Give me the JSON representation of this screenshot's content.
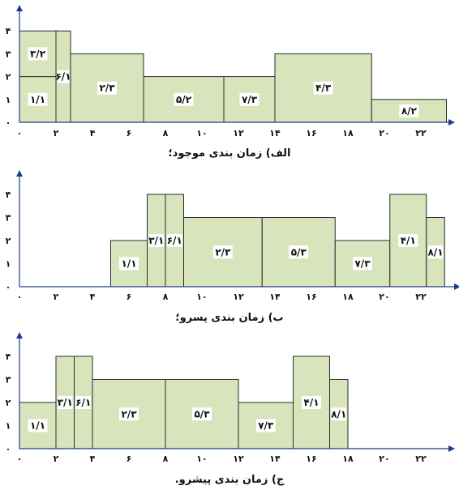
{
  "chart_data": [
    {
      "type": "bar",
      "title": "الف) زمان بندی موجود؛",
      "x_ticks": [
        "۰",
        "۲",
        "۴",
        "۶",
        "۸",
        "۱۰",
        "۱۲",
        "۱۴",
        "۱۶",
        "۱۸",
        "۲۰",
        "۲۲"
      ],
      "y_ticks": [
        "۰",
        "۱",
        "۲",
        "۳",
        "۴"
      ],
      "xlim": [
        0,
        24
      ],
      "ylim": [
        0,
        4
      ],
      "blocks": [
        {
          "label": "۱/۱",
          "x0": 0,
          "x1": 2,
          "y0": 0,
          "y1": 2
        },
        {
          "label": "۳/۲",
          "x0": 0,
          "x1": 2,
          "y0": 2,
          "y1": 4
        },
        {
          "label": "۶/۱",
          "x0": 2,
          "x1": 2.8,
          "y0": 0,
          "y1": 4
        },
        {
          "label": "۲/۳",
          "x0": 2.8,
          "x1": 6.8,
          "y0": 0,
          "y1": 3
        },
        {
          "label": "۵/۲",
          "x0": 6.8,
          "x1": 11.2,
          "y0": 0,
          "y1": 2
        },
        {
          "label": "۷/۳",
          "x0": 11.2,
          "x1": 14,
          "y0": 0,
          "y1": 2
        },
        {
          "label": "۴/۳",
          "x0": 14,
          "x1": 19.3,
          "y0": 0,
          "y1": 3
        },
        {
          "label": "۸/۲",
          "x0": 19.3,
          "x1": 23.4,
          "y0": 0,
          "y1": 1
        }
      ]
    },
    {
      "type": "bar",
      "title": "ب) زمان بندی پسرو؛",
      "x_ticks": [
        "۰",
        "۲",
        "۴",
        "۶",
        "۸",
        "۱۰",
        "۱۲",
        "۱۴",
        "۱۶",
        "۱۸",
        "۲۰",
        "۲۲"
      ],
      "y_ticks": [
        "۰",
        "۱",
        "۲",
        "۳",
        "۴"
      ],
      "xlim": [
        0,
        24
      ],
      "ylim": [
        0,
        4
      ],
      "blocks": [
        {
          "label": "۱/۱",
          "x0": 5,
          "x1": 7,
          "y0": 0,
          "y1": 2
        },
        {
          "label": "۳/۱",
          "x0": 7,
          "x1": 8,
          "y0": 0,
          "y1": 4
        },
        {
          "label": "۶/۱",
          "x0": 8,
          "x1": 9,
          "y0": 0,
          "y1": 4
        },
        {
          "label": "۲/۳",
          "x0": 9,
          "x1": 13.3,
          "y0": 0,
          "y1": 3
        },
        {
          "label": "۵/۳",
          "x0": 13.3,
          "x1": 17.3,
          "y0": 0,
          "y1": 3
        },
        {
          "label": "۷/۳",
          "x0": 17.3,
          "x1": 20.3,
          "y0": 0,
          "y1": 2
        },
        {
          "label": "۴/۱",
          "x0": 20.3,
          "x1": 22.3,
          "y0": 0,
          "y1": 4
        },
        {
          "label": "۸/۱",
          "x0": 22.3,
          "x1": 23.3,
          "y0": 0,
          "y1": 3
        }
      ]
    },
    {
      "type": "bar",
      "title": "ج) زمان بندی پیشرو.",
      "x_ticks": [
        "۰",
        "۲",
        "۴",
        "۶",
        "۸",
        "۱۰",
        "۱۲",
        "۱۴",
        "۱۶",
        "۱۸",
        "۲۰",
        "۲۲"
      ],
      "y_ticks": [
        "۰",
        "۱",
        "۲",
        "۳",
        "۴"
      ],
      "xlim": [
        0,
        24
      ],
      "ylim": [
        0,
        4
      ],
      "blocks": [
        {
          "label": "۱/۱",
          "x0": 0,
          "x1": 2,
          "y0": 0,
          "y1": 2
        },
        {
          "label": "۳/۱",
          "x0": 2,
          "x1": 3,
          "y0": 0,
          "y1": 4
        },
        {
          "label": "۶/۱",
          "x0": 3,
          "x1": 4,
          "y0": 0,
          "y1": 4
        },
        {
          "label": "۲/۳",
          "x0": 4,
          "x1": 8,
          "y0": 0,
          "y1": 3
        },
        {
          "label": "۵/۳",
          "x0": 8,
          "x1": 12,
          "y0": 0,
          "y1": 3
        },
        {
          "label": "۷/۳",
          "x0": 12,
          "x1": 15,
          "y0": 0,
          "y1": 2
        },
        {
          "label": "۴/۱",
          "x0": 15,
          "x1": 17,
          "y0": 0,
          "y1": 4
        },
        {
          "label": "۸/۱",
          "x0": 17,
          "x1": 18,
          "y0": 0,
          "y1": 3
        }
      ]
    }
  ]
}
